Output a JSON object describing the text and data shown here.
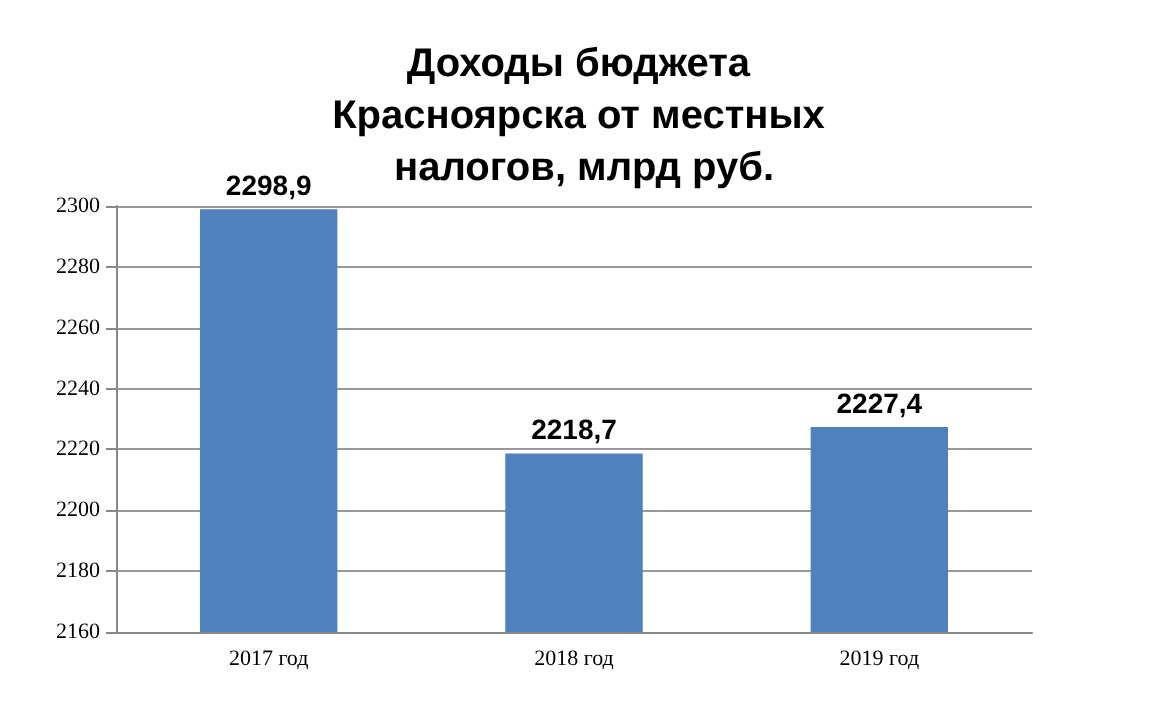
{
  "chart_data": {
    "type": "bar",
    "title": "Доходы бюджета Красноярска от местных налогов, млрд руб.",
    "categories": [
      "2017 год",
      "2018 год",
      "2019 год"
    ],
    "values": [
      2298.9,
      2218.7,
      2227.4
    ],
    "value_labels": [
      "2298,9",
      "2218,7",
      "2227,4"
    ],
    "color": "#4f81bd",
    "ylim": [
      2160,
      2300
    ],
    "yticks": [
      2160,
      2180,
      2200,
      2220,
      2240,
      2260,
      2280,
      2300
    ],
    "grid": true
  }
}
